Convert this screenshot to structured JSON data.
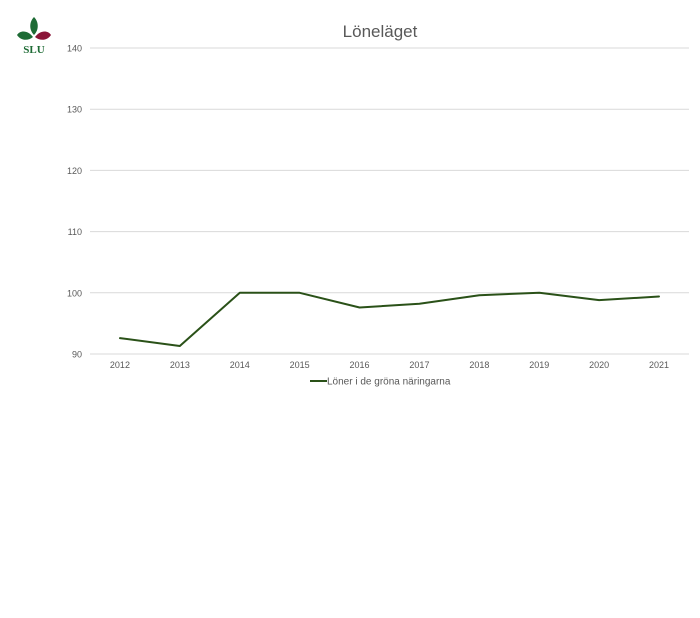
{
  "logo": {
    "text": "SLU",
    "colors": {
      "green": "#1e6b35",
      "red": "#8a1538",
      "text": "#1e6b35"
    }
  },
  "colors": {
    "line": "#2a5118",
    "grid": "#d9d9d9",
    "tick_text": "#595959",
    "title_text": "#595959"
  },
  "chart_data": {
    "type": "line",
    "title": "Löneläget",
    "xlabel": "",
    "ylabel": "",
    "categories": [
      "2012",
      "2013",
      "2014",
      "2015",
      "2016",
      "2017",
      "2018",
      "2019",
      "2020",
      "2021"
    ],
    "series": [
      {
        "name": "Löner i de gröna näringarna",
        "values": [
          92.6,
          91.3,
          100.0,
          100.0,
          97.6,
          98.2,
          99.6,
          100.0,
          98.8,
          99.4
        ]
      }
    ],
    "ylim": [
      90,
      140
    ],
    "yticks": [
      90,
      100,
      110,
      120,
      130,
      140
    ],
    "grid": true,
    "legend": "bottom"
  }
}
